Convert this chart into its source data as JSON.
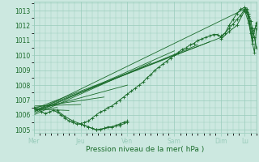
{
  "title": "",
  "xlabel": "Pression niveau de la mer( hPa )",
  "bg_color": "#cce8e0",
  "grid_color": "#99ccbb",
  "line_color": "#1a6b2a",
  "ylim": [
    1004.8,
    1013.6
  ],
  "yticks": [
    1005,
    1006,
    1007,
    1008,
    1009,
    1010,
    1011,
    1012,
    1013
  ],
  "day_labels": [
    "Mer",
    "Jeu",
    "Ven",
    "Sam",
    "Dim",
    "Lu"
  ],
  "day_positions": [
    0,
    48,
    96,
    144,
    192,
    216
  ],
  "xlim": [
    0,
    228
  ],
  "lines": [
    {
      "x": [
        0,
        216
      ],
      "y": [
        1006.2,
        1013.1
      ]
    },
    {
      "x": [
        0,
        192
      ],
      "y": [
        1006.4,
        1011.2
      ]
    },
    {
      "x": [
        0,
        180
      ],
      "y": [
        1006.3,
        1010.9
      ]
    },
    {
      "x": [
        0,
        168
      ],
      "y": [
        1006.2,
        1010.7
      ]
    },
    {
      "x": [
        0,
        144
      ],
      "y": [
        1006.1,
        1010.3
      ]
    },
    {
      "x": [
        0,
        120
      ],
      "y": [
        1006.0,
        1009.5
      ]
    },
    {
      "x": [
        0,
        96
      ],
      "y": [
        1006.3,
        1008.0
      ]
    },
    {
      "x": [
        0,
        72
      ],
      "y": [
        1006.5,
        1007.2
      ]
    },
    {
      "x": [
        0,
        48
      ],
      "y": [
        1006.6,
        1006.7
      ]
    },
    {
      "x": [
        0,
        36
      ],
      "y": [
        1006.4,
        1006.3
      ]
    },
    {
      "x": [
        0,
        24
      ],
      "y": [
        1006.3,
        1006.5
      ]
    }
  ],
  "main_trace_x": [
    0,
    4,
    8,
    12,
    16,
    20,
    24,
    28,
    32,
    36,
    40,
    44,
    48,
    52,
    56,
    60,
    64,
    68,
    72,
    76,
    80,
    84,
    88,
    92,
    96,
    100,
    104,
    108,
    112,
    116,
    120,
    124,
    128,
    132,
    136,
    140,
    144,
    148,
    152,
    156,
    160,
    164,
    168,
    172,
    176,
    180,
    184,
    188,
    192,
    196,
    200,
    204,
    208,
    212,
    216,
    218,
    220,
    222,
    224,
    226,
    228
  ],
  "main_trace_y": [
    1006.5,
    1006.4,
    1006.2,
    1006.1,
    1006.2,
    1006.3,
    1006.2,
    1006.0,
    1005.8,
    1005.6,
    1005.5,
    1005.4,
    1005.4,
    1005.5,
    1005.6,
    1005.8,
    1006.0,
    1006.2,
    1006.3,
    1006.5,
    1006.6,
    1006.8,
    1007.0,
    1007.2,
    1007.4,
    1007.6,
    1007.8,
    1008.0,
    1008.2,
    1008.5,
    1008.7,
    1009.0,
    1009.2,
    1009.4,
    1009.6,
    1009.8,
    1010.0,
    1010.2,
    1010.4,
    1010.5,
    1010.7,
    1010.8,
    1011.0,
    1011.1,
    1011.2,
    1011.3,
    1011.4,
    1011.4,
    1011.2,
    1011.5,
    1012.0,
    1012.4,
    1012.8,
    1013.1,
    1013.2,
    1013.1,
    1012.8,
    1012.3,
    1011.8,
    1011.2,
    1010.5
  ],
  "extra_traces": [
    {
      "x": [
        192,
        196,
        200,
        204,
        208,
        212,
        216,
        218,
        220,
        222,
        224
      ],
      "y": [
        1011.3,
        1011.5,
        1011.8,
        1012.1,
        1012.4,
        1012.7,
        1013.1,
        1012.9,
        1012.5,
        1011.8,
        1011.2
      ]
    },
    {
      "x": [
        192,
        200,
        208,
        216,
        220,
        224,
        228
      ],
      "y": [
        1011.1,
        1011.6,
        1012.0,
        1013.0,
        1012.6,
        1011.5,
        1012.0
      ]
    },
    {
      "x": [
        216,
        218,
        220,
        222,
        224,
        226,
        228
      ],
      "y": [
        1013.2,
        1013.0,
        1012.5,
        1011.5,
        1010.8,
        1010.2,
        1011.8
      ]
    },
    {
      "x": [
        216,
        220,
        224,
        228
      ],
      "y": [
        1013.0,
        1012.2,
        1011.0,
        1012.2
      ]
    },
    {
      "x": [
        48,
        52,
        56,
        60,
        64,
        68,
        72,
        76,
        80,
        84,
        88,
        92,
        96
      ],
      "y": [
        1005.4,
        1005.3,
        1005.2,
        1005.1,
        1005.0,
        1005.0,
        1005.1,
        1005.2,
        1005.2,
        1005.3,
        1005.4,
        1005.5,
        1005.6
      ]
    },
    {
      "x": [
        24,
        32,
        40,
        48,
        56,
        64,
        72,
        80,
        88,
        96
      ],
      "y": [
        1006.3,
        1005.9,
        1005.6,
        1005.4,
        1005.2,
        1005.0,
        1005.1,
        1005.2,
        1005.3,
        1005.5
      ]
    }
  ]
}
